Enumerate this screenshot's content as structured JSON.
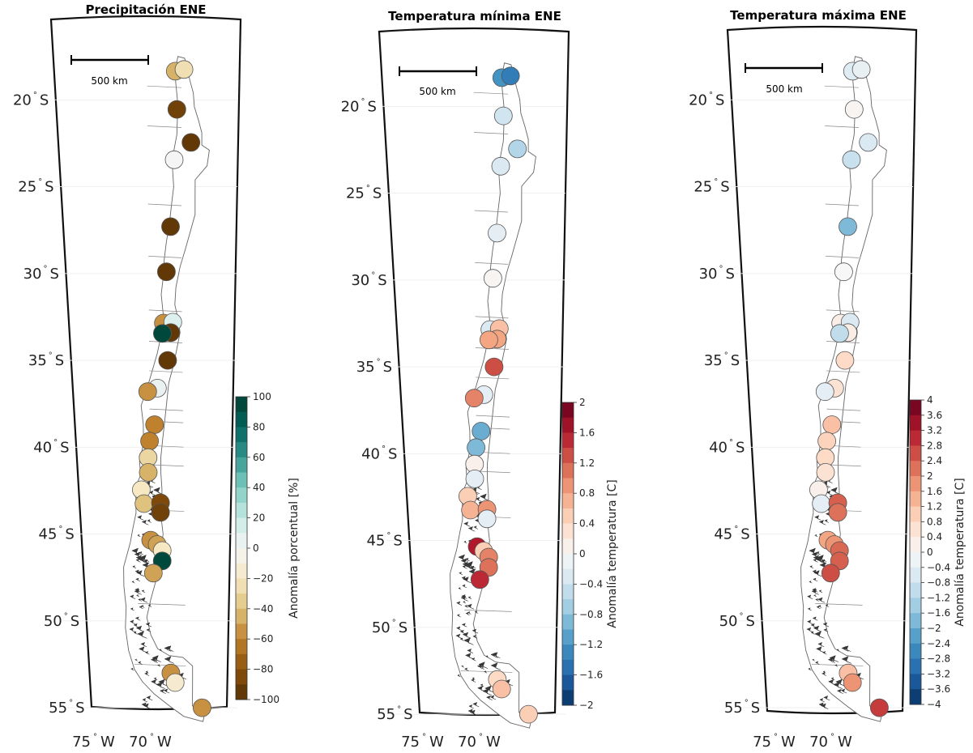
{
  "panels": [
    {
      "id": "precip",
      "title": "Precipitación ENE",
      "scale_label": "500 km",
      "lat_ticks": [
        "20",
        "25",
        "30",
        "35",
        "40",
        "45",
        "50",
        "55"
      ],
      "lat_suffix": "S",
      "lon_ticks": [
        "75",
        "70"
      ],
      "lon_suffix": "W",
      "colorbar": {
        "label": "Anomalía porcentual [%]",
        "ticks": [
          "100",
          "80",
          "60",
          "40",
          "20",
          "0",
          "−20",
          "−40",
          "−60",
          "−80",
          "−100"
        ],
        "min": -100,
        "max": 100,
        "colors": [
          "#543005",
          "#8c510a",
          "#bf812d",
          "#dfc27d",
          "#f6e8c3",
          "#f5f5f5",
          "#c7eae5",
          "#80cdc1",
          "#35978f",
          "#01665e",
          "#003c30"
        ]
      },
      "stations": [
        {
          "lat": -18.35,
          "lon": -70.35,
          "value": -45
        },
        {
          "lat": -18.25,
          "lon": -69.55,
          "value": -25
        },
        {
          "lat": -20.55,
          "lon": -70.2,
          "value": -90
        },
        {
          "lat": -22.45,
          "lon": -68.9,
          "value": -95
        },
        {
          "lat": -23.45,
          "lon": -70.45,
          "value": 0
        },
        {
          "lat": -27.3,
          "lon": -70.8,
          "value": -95
        },
        {
          "lat": -29.9,
          "lon": -71.2,
          "value": -95
        },
        {
          "lat": -32.85,
          "lon": -71.5,
          "value": -55
        },
        {
          "lat": -32.8,
          "lon": -70.6,
          "value": 10
        },
        {
          "lat": -33.4,
          "lon": -70.8,
          "value": -95
        },
        {
          "lat": -33.45,
          "lon": -71.6,
          "value": 95
        },
        {
          "lat": -35.0,
          "lon": -71.1,
          "value": -95
        },
        {
          "lat": -36.6,
          "lon": -72.1,
          "value": 5
        },
        {
          "lat": -36.8,
          "lon": -73.05,
          "value": -55
        },
        {
          "lat": -38.7,
          "lon": -72.4,
          "value": -60
        },
        {
          "lat": -39.65,
          "lon": -72.9,
          "value": -60
        },
        {
          "lat": -40.6,
          "lon": -73.05,
          "value": -30
        },
        {
          "lat": -41.45,
          "lon": -73.05,
          "value": -45
        },
        {
          "lat": -42.45,
          "lon": -73.75,
          "value": -20
        },
        {
          "lat": -43.25,
          "lon": -73.5,
          "value": -40
        },
        {
          "lat": -43.2,
          "lon": -71.85,
          "value": -85
        },
        {
          "lat": -43.75,
          "lon": -71.85,
          "value": -90
        },
        {
          "lat": -45.35,
          "lon": -72.85,
          "value": -55
        },
        {
          "lat": -45.6,
          "lon": -72.2,
          "value": -50
        },
        {
          "lat": -45.95,
          "lon": -71.7,
          "value": -20
        },
        {
          "lat": -46.55,
          "lon": -71.7,
          "value": 95
        },
        {
          "lat": -47.25,
          "lon": -72.6,
          "value": -50
        },
        {
          "lat": -53.0,
          "lon": -70.85,
          "value": -55
        },
        {
          "lat": -53.55,
          "lon": -70.4,
          "value": -15
        },
        {
          "lat": -55.0,
          "lon": -67.6,
          "value": -55
        }
      ]
    },
    {
      "id": "tmin",
      "title": "Temperatura mínima ENE",
      "scale_label": "500 km",
      "lat_ticks": [
        "20",
        "25",
        "30",
        "35",
        "40",
        "45",
        "50",
        "55"
      ],
      "lat_suffix": "S",
      "lon_ticks": [
        "75",
        "70"
      ],
      "lon_suffix": "W",
      "colorbar": {
        "label": "Anomalía temperatura [C]",
        "ticks": [
          "2",
          "1.6",
          "1.2",
          "0.8",
          "0.4",
          "0",
          "−0.4",
          "−0.8",
          "−1.2",
          "−1.6",
          "−2"
        ],
        "min": -2,
        "max": 2,
        "colors": [
          "#053061",
          "#2166ac",
          "#4393c3",
          "#92c5de",
          "#d1e5f0",
          "#f7f7f7",
          "#fddbc7",
          "#f4a582",
          "#d6604d",
          "#b2182b",
          "#67001f"
        ]
      },
      "stations": [
        {
          "lat": -18.35,
          "lon": -70.35,
          "value": -1.2
        },
        {
          "lat": -18.25,
          "lon": -69.55,
          "value": -1.4
        },
        {
          "lat": -20.55,
          "lon": -70.2,
          "value": -0.4
        },
        {
          "lat": -22.45,
          "lon": -68.9,
          "value": -0.6
        },
        {
          "lat": -23.45,
          "lon": -70.45,
          "value": -0.3
        },
        {
          "lat": -27.3,
          "lon": -70.8,
          "value": -0.2
        },
        {
          "lat": -29.9,
          "lon": -71.2,
          "value": 0.05
        },
        {
          "lat": -32.85,
          "lon": -71.5,
          "value": -0.3
        },
        {
          "lat": -32.8,
          "lon": -70.6,
          "value": 0.6
        },
        {
          "lat": -33.4,
          "lon": -70.8,
          "value": 0.8
        },
        {
          "lat": -33.45,
          "lon": -71.6,
          "value": 0.8
        },
        {
          "lat": -35.0,
          "lon": -71.1,
          "value": 1.3
        },
        {
          "lat": -36.6,
          "lon": -72.1,
          "value": -0.2
        },
        {
          "lat": -36.8,
          "lon": -73.05,
          "value": 1.0
        },
        {
          "lat": -38.7,
          "lon": -72.4,
          "value": -1.0
        },
        {
          "lat": -39.65,
          "lon": -72.9,
          "value": -0.9
        },
        {
          "lat": -40.6,
          "lon": -73.05,
          "value": 0.1
        },
        {
          "lat": -41.45,
          "lon": -73.05,
          "value": -0.2
        },
        {
          "lat": -42.45,
          "lon": -73.75,
          "value": 0.5
        },
        {
          "lat": -43.25,
          "lon": -73.5,
          "value": 0.7
        },
        {
          "lat": -43.2,
          "lon": -71.85,
          "value": 0.9
        },
        {
          "lat": -43.75,
          "lon": -71.85,
          "value": -0.2
        },
        {
          "lat": -45.35,
          "lon": -72.85,
          "value": 1.6
        },
        {
          "lat": -45.6,
          "lon": -72.2,
          "value": 0.5
        },
        {
          "lat": -45.95,
          "lon": -71.7,
          "value": 1.0
        },
        {
          "lat": -46.55,
          "lon": -71.7,
          "value": 1.1
        },
        {
          "lat": -47.25,
          "lon": -72.6,
          "value": 1.5
        },
        {
          "lat": -53.0,
          "lon": -70.85,
          "value": 0.4
        },
        {
          "lat": -53.55,
          "lon": -70.4,
          "value": 0.6
        },
        {
          "lat": -55.0,
          "lon": -67.6,
          "value": 0.5
        }
      ]
    },
    {
      "id": "tmax",
      "title": "Temperatura máxima ENE",
      "scale_label": "500 km",
      "lat_ticks": [
        "20",
        "25",
        "30",
        "35",
        "40",
        "45",
        "50",
        "55"
      ],
      "lat_suffix": "S",
      "lon_ticks": [
        "75",
        "70"
      ],
      "lon_suffix": "W",
      "colorbar": {
        "label": "Anomalía temperatura [C]",
        "ticks": [
          "4",
          "3.6",
          "3.2",
          "2.8",
          "2.4",
          "2",
          "1.6",
          "1.2",
          "0.8",
          "0.4",
          "0",
          "−0.4",
          "−0.8",
          "−1.2",
          "−1.6",
          "−2",
          "−2.4",
          "−2.8",
          "−3.2",
          "−3.6",
          "−4"
        ],
        "min": -4,
        "max": 4,
        "colors": [
          "#053061",
          "#2166ac",
          "#4393c3",
          "#92c5de",
          "#d1e5f0",
          "#f7f7f7",
          "#fddbc7",
          "#f4a582",
          "#d6604d",
          "#b2182b",
          "#67001f"
        ]
      },
      "stations": [
        {
          "lat": -18.35,
          "lon": -70.35,
          "value": -0.5
        },
        {
          "lat": -18.25,
          "lon": -69.55,
          "value": -0.3
        },
        {
          "lat": -20.55,
          "lon": -70.2,
          "value": 0.1
        },
        {
          "lat": -22.45,
          "lon": -68.9,
          "value": -0.6
        },
        {
          "lat": -23.45,
          "lon": -70.45,
          "value": -0.9
        },
        {
          "lat": -27.3,
          "lon": -70.8,
          "value": -1.8
        },
        {
          "lat": -29.9,
          "lon": -71.2,
          "value": 0.0
        },
        {
          "lat": -32.85,
          "lon": -71.5,
          "value": 0.3
        },
        {
          "lat": -32.8,
          "lon": -70.6,
          "value": -0.6
        },
        {
          "lat": -33.4,
          "lon": -70.8,
          "value": 0.3
        },
        {
          "lat": -33.45,
          "lon": -71.6,
          "value": -1.0
        },
        {
          "lat": -35.0,
          "lon": -71.1,
          "value": 0.8
        },
        {
          "lat": -36.6,
          "lon": -72.1,
          "value": 0.6
        },
        {
          "lat": -36.8,
          "lon": -73.05,
          "value": -0.4
        },
        {
          "lat": -38.7,
          "lon": -72.4,
          "value": 1.2
        },
        {
          "lat": -39.65,
          "lon": -72.9,
          "value": 0.9
        },
        {
          "lat": -40.6,
          "lon": -73.05,
          "value": 0.8
        },
        {
          "lat": -41.45,
          "lon": -73.05,
          "value": 0.6
        },
        {
          "lat": -42.45,
          "lon": -73.75,
          "value": 0.2
        },
        {
          "lat": -43.25,
          "lon": -73.5,
          "value": -0.4
        },
        {
          "lat": -43.2,
          "lon": -71.85,
          "value": 2.4
        },
        {
          "lat": -43.75,
          "lon": -71.85,
          "value": 2.2
        },
        {
          "lat": -45.35,
          "lon": -72.85,
          "value": 1.6
        },
        {
          "lat": -45.6,
          "lon": -72.2,
          "value": 1.8
        },
        {
          "lat": -45.95,
          "lon": -71.7,
          "value": 2.3
        },
        {
          "lat": -46.55,
          "lon": -71.7,
          "value": 2.4
        },
        {
          "lat": -47.25,
          "lon": -72.6,
          "value": 2.6
        },
        {
          "lat": -53.0,
          "lon": -70.85,
          "value": 1.2
        },
        {
          "lat": -53.55,
          "lon": -70.4,
          "value": 1.8
        },
        {
          "lat": -55.0,
          "lon": -67.6,
          "value": 2.8
        }
      ]
    }
  ]
}
